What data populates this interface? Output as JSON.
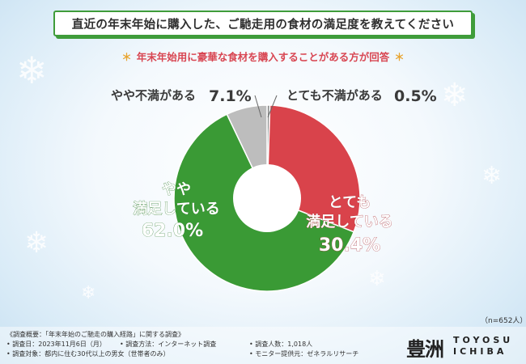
{
  "title": "直近の年末年始に購入した、ご馳走用の食材の満足度を教えてください",
  "subtitle": "年末年始用に豪華な食材を購入することがある方が回答",
  "subtitle_star": "＊",
  "n_note": "（n=652人）",
  "chart_data": {
    "type": "pie",
    "donut": true,
    "slices": [
      {
        "label": "とても不満がある",
        "value": 0.5,
        "display": "0.5%",
        "color": "#8c8c8c"
      },
      {
        "label": "とても満足している",
        "value": 30.4,
        "display": "30.4%",
        "color": "#d9434b"
      },
      {
        "label": "やや満足している",
        "value": 62.0,
        "display": "62.0%",
        "color": "#3a9a35"
      },
      {
        "label": "やや不満がある",
        "value": 7.1,
        "display": "7.1%",
        "color": "#bdbdbd"
      }
    ],
    "labels": {
      "very_satisfied_line1": "とても",
      "very_satisfied_line2": "満足している",
      "very_satisfied_pct": "30.4%",
      "somewhat_satisfied_line1": "やや",
      "somewhat_satisfied_line2": "満足している",
      "somewhat_satisfied_pct": "62.0%",
      "somewhat_dissatisfied": "やや不満がある",
      "somewhat_dissatisfied_pct": "7.1%",
      "very_dissatisfied": "とても不満がある",
      "very_dissatisfied_pct": "0.5%"
    }
  },
  "footer": {
    "survey_overview": "《調査概要：「年末年始のご馳走の購入経路」に関する調査》",
    "survey_date": "• 調査日：2023年11月6日（月）",
    "survey_method": "• 調査方法：インターネット調査",
    "survey_count": "• 調査人数：1,018人",
    "survey_target": "• 調査対象：都内に住む30代以上の男女（世帯者のみ）",
    "monitor": "• モニター提供元：ゼネラルリサーチ"
  },
  "logo": {
    "kanji": "豊洲",
    "line1": "TOYOSU",
    "line2": "ICHIBA"
  },
  "colors": {
    "accent_green": "#3f9c3a",
    "satisfied_red": "#d9434b",
    "satisfied_green": "#3a9a35"
  }
}
